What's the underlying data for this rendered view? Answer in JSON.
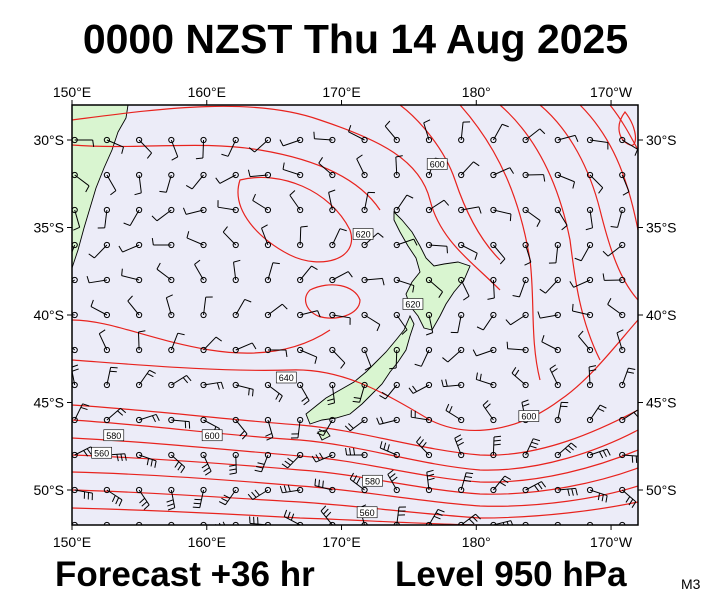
{
  "title": "0000 NZST Thu 14 Aug 2025",
  "footer": {
    "forecast": "Forecast +36 hr",
    "level": "Level 950 hPa",
    "model": "M3"
  },
  "map": {
    "extent": {
      "lon": [
        150,
        192
      ],
      "lat": [
        -28,
        -52
      ]
    },
    "lon_ticks": [
      {
        "lon": 150,
        "label": "150°E"
      },
      {
        "lon": 160,
        "label": "160°E"
      },
      {
        "lon": 170,
        "label": "170°E"
      },
      {
        "lon": 180,
        "label": "180°"
      },
      {
        "lon": 190,
        "label": "170°W"
      }
    ],
    "lat_ticks": [
      {
        "lat": -30,
        "label": "30°S"
      },
      {
        "lat": -35,
        "label": "35°S"
      },
      {
        "lat": -40,
        "label": "40°S"
      },
      {
        "lat": -45,
        "label": "45°S"
      },
      {
        "lat": -50,
        "label": "50°S"
      }
    ],
    "colors": {
      "sea": "#ececf8",
      "land": "#d9f5d0",
      "contour": "#e8231e",
      "barb": "#000000"
    },
    "contour_labels": [
      {
        "text": "600",
        "lon": 177.1,
        "lat": -31.4
      },
      {
        "text": "620",
        "lon": 171.6,
        "lat": -35.4
      },
      {
        "text": "620",
        "lon": 175.3,
        "lat": -39.4
      },
      {
        "text": "640",
        "lon": 165.9,
        "lat": -43.6
      },
      {
        "text": "580",
        "lon": 153.1,
        "lat": -46.9
      },
      {
        "text": "600",
        "lon": 160.4,
        "lat": -46.9
      },
      {
        "text": "560",
        "lon": 152.2,
        "lat": -47.9
      },
      {
        "text": "600",
        "lon": 183.9,
        "lat": -45.8
      },
      {
        "text": "580",
        "lon": 172.3,
        "lat": -49.5
      },
      {
        "text": "560",
        "lon": 171.9,
        "lat": -51.3
      }
    ],
    "wind_barb_grid": {
      "lon_start": 150.2,
      "lon_step": 2.39,
      "lat_start": -30.0,
      "lat_step": -2.0,
      "cols": 18,
      "rows": 12
    }
  }
}
